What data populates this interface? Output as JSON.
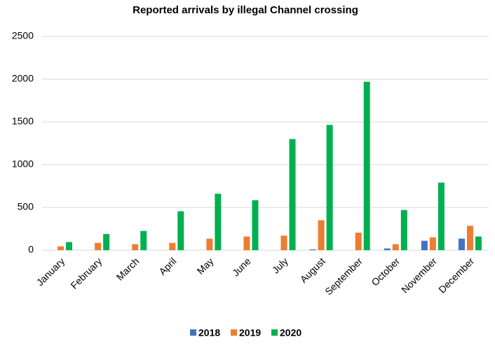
{
  "chart_data": {
    "type": "bar",
    "title": "Reported arrivals by illegal Channel crossing",
    "categories": [
      "January",
      "February",
      "March",
      "April",
      "May",
      "June",
      "July",
      "August",
      "September",
      "October",
      "November",
      "December"
    ],
    "series": [
      {
        "name": "2018",
        "color": "#4472c4",
        "values": [
          0,
          0,
          0,
          0,
          0,
          0,
          0,
          10,
          0,
          20,
          110,
          135
        ]
      },
      {
        "name": "2019",
        "color": "#ed7d31",
        "values": [
          45,
          85,
          70,
          85,
          135,
          160,
          170,
          350,
          205,
          70,
          150,
          285
        ]
      },
      {
        "name": "2020",
        "color": "#00b050",
        "values": [
          95,
          190,
          225,
          455,
          660,
          585,
          1300,
          1465,
          1970,
          470,
          790,
          160
        ]
      }
    ],
    "ylim": [
      0,
      2500
    ],
    "yticks": [
      0,
      500,
      1000,
      1500,
      2000,
      2500
    ],
    "grid": true,
    "legend": "bottom"
  }
}
